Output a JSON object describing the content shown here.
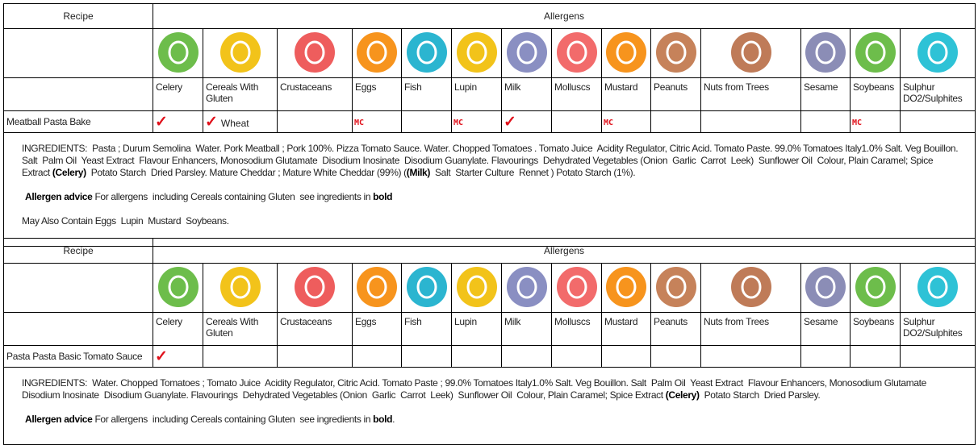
{
  "blocks": [
    {
      "header": {
        "recipe": "Recipe",
        "allergens": "Allergens"
      },
      "allergens": [
        "Celery",
        "Cereals With Gluten",
        "Crustaceans",
        "Eggs",
        "Fish",
        "Lupin",
        "Milk",
        "Molluscs",
        "Mustard",
        "Peanuts",
        "Nuts from Trees",
        "Sesame",
        "Soybeans",
        "Sulphur DO2/Sulphites"
      ],
      "recipe": "Meatball Pasta Bake",
      "cells": [
        {
          "mark": "✓"
        },
        {
          "mark": "✓",
          "note": "Wheat"
        },
        null,
        {
          "mark": "MC"
        },
        null,
        {
          "mark": "MC"
        },
        {
          "mark": "✓"
        },
        null,
        {
          "mark": "MC"
        },
        null,
        null,
        null,
        {
          "mark": "MC"
        },
        null
      ],
      "ingredients": [
        [
          {
            "text": "INGREDIENTS:  Pasta ; Durum Semolina  Water. Pork Meatball ; Pork 100%. Pizza Tomato Sauce. Water. Chopped Tomatoes . Tomato Juice  Acidity Regulator, Citric Acid. Tomato Paste. 99.0% Tomatoes Italy1.0% Salt. Veg Bouillon. Salt  Palm Oil  Yeast Extract  Flavour Enhancers, Monosodium Glutamate  Disodium Inosinate  Disodium Guanylate. Flavourings  Dehydrated Vegetables (Onion  Garlic  Carrot  Leek)  Sunflower Oil  Colour, Plain Caramel; Spice Extract "
          },
          {
            "text": "(Celery)",
            "bold": true
          },
          {
            "text": "  Potato Starch  Dried Parsley. Mature Cheddar ; Mature White Cheddar (99%) ("
          },
          {
            "text": "(Milk)",
            "bold": true
          },
          {
            "text": "  Salt  Starter Culture  Rennet ) Potato Starch (1%)."
          }
        ],
        [
          {
            "text": "Allergen advice",
            "bold": true
          },
          {
            "text": " For allergens  including Cereals containing Gluten  see ingredients in "
          },
          {
            "text": "bold",
            "bold": true
          }
        ],
        [
          {
            "text": "May Also Contain Eggs  Lupin  Mustard  Soybeans."
          }
        ]
      ]
    },
    {
      "header": {
        "recipe": "Recipe",
        "allergens": "Allergens"
      },
      "allergens": [
        "Celery",
        "Cereals With Gluten",
        "Crustaceans",
        "Eggs",
        "Fish",
        "Lupin",
        "Milk",
        "Molluscs",
        "Mustard",
        "Peanuts",
        "Nuts from Trees",
        "Sesame",
        "Soybeans",
        "Sulphur DO2/Sulphites"
      ],
      "recipe": "Pasta Pasta Basic Tomato Sauce",
      "cells": [
        {
          "mark": "✓"
        },
        null,
        null,
        null,
        null,
        null,
        null,
        null,
        null,
        null,
        null,
        null,
        null,
        null
      ],
      "ingredients": [
        [
          {
            "text": "INGREDIENTS:  Water. Chopped Tomatoes ; Tomato Juice  Acidity Regulator, Citric Acid. Tomato Paste ; 99.0% Tomatoes Italy1.0% Salt. Veg Bouillon. Salt  Palm Oil  Yeast Extract  Flavour Enhancers, Monosodium Glutamate  Disodium Inosinate  Disodium Guanylate. Flavourings  Dehydrated Vegetables (Onion  Garlic  Carrot  Leek)  Sunflower Oil  Colour, Plain Caramel; Spice Extract "
          },
          {
            "text": "(Celery)",
            "bold": true
          },
          {
            "text": "  Potato Starch  Dried Parsley."
          }
        ],
        [
          {
            "text": "Allergen advice",
            "bold": true
          },
          {
            "text": " For allergens  including Cereals containing Gluten  see ingredients in "
          },
          {
            "text": "bold",
            "bold": true
          },
          {
            "text": "."
          }
        ]
      ]
    }
  ]
}
